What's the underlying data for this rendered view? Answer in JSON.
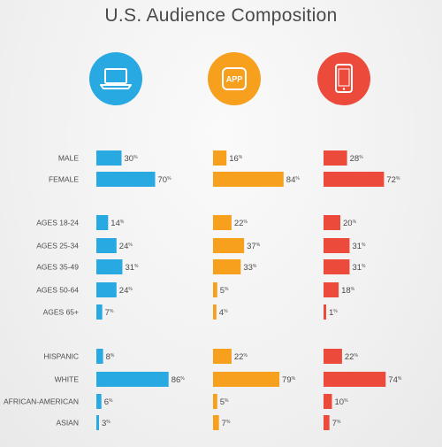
{
  "title": "U.S. Audience Composition",
  "icons": [
    {
      "name": "laptop-icon",
      "color": "#29a9e1"
    },
    {
      "name": "app-icon",
      "color": "#f6a01e",
      "text": "APP"
    },
    {
      "name": "smartphone-icon",
      "color": "#ec4b3c"
    }
  ],
  "chart_data": {
    "type": "bar",
    "title": "U.S. Audience Composition",
    "categories": [
      "MALE",
      "FEMALE",
      "AGES 18-24",
      "AGES 25-34",
      "AGES 35-49",
      "AGES 50-64",
      "AGES 65+",
      "HISPANIC",
      "WHITE",
      "AFRICAN-AMERICAN",
      "ASIAN"
    ],
    "groups": [
      [
        "MALE",
        "FEMALE"
      ],
      [
        "AGES 18-24",
        "AGES 25-34",
        "AGES 35-49",
        "AGES 50-64",
        "AGES 65+"
      ],
      [
        "HISPANIC",
        "WHITE",
        "AFRICAN-AMERICAN",
        "ASIAN"
      ]
    ],
    "unit": "%",
    "series": [
      {
        "icon": "laptop-icon",
        "color": "#29a9e1",
        "values": [
          30,
          70,
          14,
          24,
          31,
          24,
          7,
          8,
          86,
          6,
          3
        ]
      },
      {
        "icon": "app-icon",
        "color": "#f6a01e",
        "values": [
          16,
          84,
          22,
          37,
          33,
          5,
          4,
          22,
          79,
          5,
          7
        ]
      },
      {
        "icon": "smartphone-icon",
        "color": "#ec4b3c",
        "values": [
          28,
          72,
          20,
          31,
          31,
          18,
          1,
          22,
          74,
          10,
          7
        ]
      }
    ],
    "xlim": [
      0,
      100
    ]
  }
}
